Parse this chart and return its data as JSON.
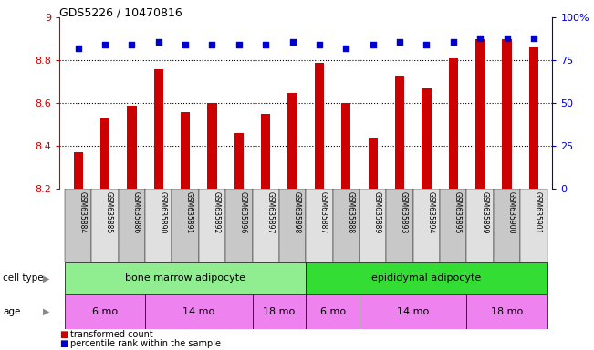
{
  "title": "GDS5226 / 10470816",
  "samples": [
    "GSM635884",
    "GSM635885",
    "GSM635886",
    "GSM635890",
    "GSM635891",
    "GSM635892",
    "GSM635896",
    "GSM635897",
    "GSM635898",
    "GSM635887",
    "GSM635888",
    "GSM635889",
    "GSM635893",
    "GSM635894",
    "GSM635895",
    "GSM635899",
    "GSM635900",
    "GSM635901"
  ],
  "bar_values": [
    8.37,
    8.53,
    8.59,
    8.76,
    8.56,
    8.6,
    8.46,
    8.55,
    8.65,
    8.79,
    8.6,
    8.44,
    8.73,
    8.67,
    8.81,
    8.9,
    8.9,
    8.86
  ],
  "dot_values": [
    82,
    84,
    84,
    86,
    84,
    84,
    84,
    84,
    86,
    84,
    82,
    84,
    86,
    84,
    86,
    88,
    88,
    88
  ],
  "ylim_left": [
    8.2,
    9.0
  ],
  "ylim_right": [
    0,
    100
  ],
  "yticks_left": [
    8.2,
    8.4,
    8.6,
    8.8,
    9.0
  ],
  "ytick_labels_left": [
    "8.2",
    "8.4",
    "8.6",
    "8.8",
    "9"
  ],
  "yticks_right": [
    0,
    25,
    50,
    75,
    100
  ],
  "ytick_labels_right": [
    "0",
    "25",
    "50",
    "75",
    "100%"
  ],
  "bar_color": "#cc0000",
  "dot_color": "#0000cc",
  "plot_bg_color": "#ffffff",
  "grid_color": "#000000",
  "tick_color_left": "#cc0000",
  "tick_color_right": "#0000cc",
  "cell_type_bma_color": "#90ee90",
  "cell_type_epi_color": "#33dd33",
  "age_color": "#ee82ee",
  "age_alt_color": "#dd55dd",
  "age_data": [
    [
      0,
      2,
      "6 mo"
    ],
    [
      3,
      6,
      "14 mo"
    ],
    [
      7,
      8,
      "18 mo"
    ],
    [
      9,
      10,
      "6 mo"
    ],
    [
      11,
      14,
      "14 mo"
    ],
    [
      15,
      17,
      "18 mo"
    ]
  ],
  "legend_bar_label": "transformed count",
  "legend_dot_label": "percentile rank within the sample"
}
